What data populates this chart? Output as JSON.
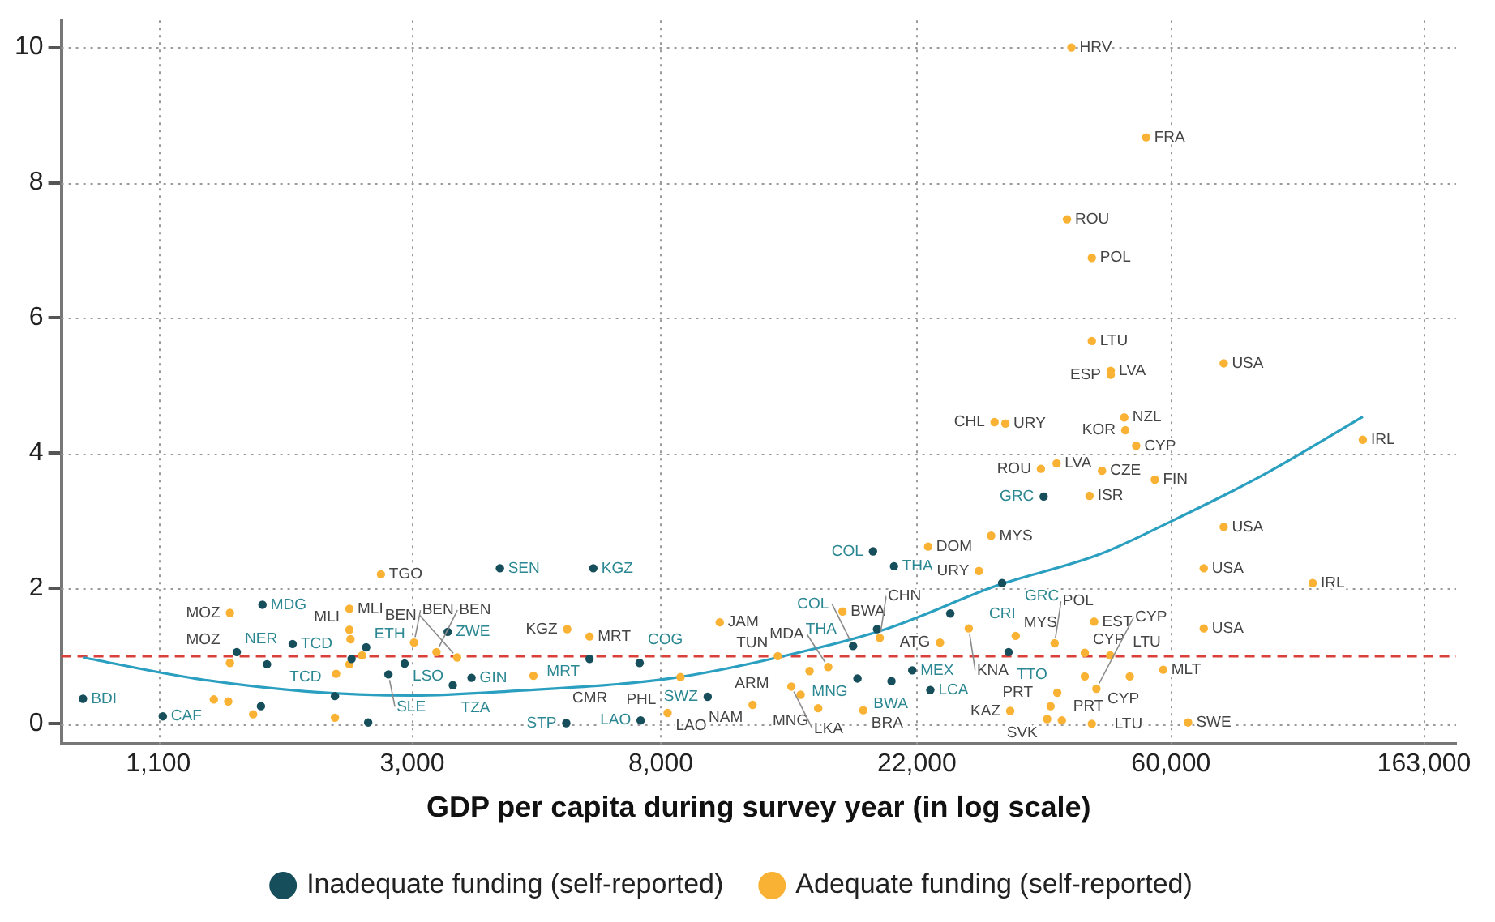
{
  "chart_data": {
    "type": "scatter",
    "xlabel": "GDP per capita during survey year (in log scale)",
    "log": "x",
    "grid": true,
    "legend": "bottom",
    "marker": "circle",
    "xlim": [
      750,
      185000
    ],
    "xticks": [
      {
        "value": 1100,
        "label": "1,100"
      },
      {
        "value": 3000,
        "label": "3,000"
      },
      {
        "value": 8000,
        "label": "8,000"
      },
      {
        "value": 22000,
        "label": "22,000"
      },
      {
        "value": 60000,
        "label": "60,000"
      },
      {
        "value": 163000,
        "label": "163,000"
      }
    ],
    "ylim": [
      -0.3,
      10.4
    ],
    "yticks": [
      0,
      2,
      4,
      6,
      8,
      10
    ],
    "series": [
      {
        "name": "Inadequate funding (self-reported)",
        "color": "#164f5b",
        "x": [
          4240,
          6130,
          18500,
          20100,
          25100,
          18800,
          17100,
          21600,
          23200,
          17400,
          19900,
          7360,
          6040,
          9630,
          7390,
          5510,
          36300,
          30800,
          31600,
          817,
          1120,
          1660,
          1500,
          1870,
          1690,
          3450,
          2500,
          2910,
          2730,
          3790,
          3520,
          2210,
          1650,
          2520,
          2360
        ],
        "values": [
          2.3,
          2.3,
          2.55,
          2.33,
          1.63,
          1.4,
          1.15,
          0.79,
          0.5,
          0.67,
          0.63,
          0.9,
          0.96,
          0.4,
          0.05,
          0.01,
          3.36,
          2.08,
          1.06,
          0.37,
          0.11,
          1.76,
          1.06,
          1.18,
          0.88,
          1.36,
          1.13,
          0.89,
          0.73,
          0.68,
          0.57,
          0.41,
          0.26,
          0.02,
          0.96
        ]
      },
      {
        "name": "Adequate funding (self-reported)",
        "color": "#f9b233",
        "x": [
          40500,
          54400,
          39800,
          43900,
          43900,
          47300,
          47300,
          73900,
          29900,
          31200,
          49900,
          50100,
          52300,
          128000,
          38200,
          35900,
          45700,
          56300,
          43500,
          73900,
          29500,
          23000,
          68300,
          105000,
          68300,
          44300,
          32500,
          37900,
          42700,
          47200,
          58200,
          51000,
          42700,
          44700,
          38300,
          37300,
          31800,
          36800,
          39000,
          43900,
          64200,
          16400,
          10100,
          5530,
          6040,
          19000,
          24100,
          27000,
          12700,
          14400,
          15500,
          13400,
          13900,
          14900,
          17800,
          11500,
          4840,
          8650,
          8220,
          28100,
          2650,
          1460,
          2340,
          2340,
          2350,
          3020,
          3300,
          3580,
          1460,
          1370,
          1450,
          1600,
          2210,
          2220,
          2340,
          2460
        ],
        "values": [
          10.0,
          8.67,
          7.46,
          6.89,
          5.66,
          5.22,
          5.16,
          5.33,
          4.46,
          4.44,
          4.53,
          4.34,
          4.11,
          4.2,
          3.85,
          3.77,
          3.74,
          3.61,
          3.37,
          2.91,
          2.78,
          2.62,
          2.3,
          2.08,
          1.41,
          1.51,
          1.3,
          1.19,
          1.05,
          1.01,
          0.8,
          0.7,
          0.7,
          0.52,
          0.46,
          0.26,
          0.19,
          0.07,
          0.05,
          0.0,
          0.02,
          1.66,
          1.5,
          1.4,
          1.29,
          1.27,
          1.2,
          1.41,
          1.0,
          0.78,
          0.84,
          0.55,
          0.43,
          0.23,
          0.2,
          0.28,
          0.71,
          0.69,
          0.16,
          2.26,
          2.21,
          1.64,
          1.7,
          1.39,
          1.25,
          1.2,
          1.06,
          0.98,
          0.9,
          0.36,
          0.33,
          0.14,
          0.09,
          0.74,
          0.88,
          1.01
        ]
      },
      {
        "type": "line",
        "marker": "none",
        "color": "#2a9fc0",
        "x": [
          817,
          1270,
          1970,
          3010,
          4350,
          8290,
          12700,
          19600,
          30100,
          45400,
          60600,
          86400,
          128000
        ],
        "values": [
          0.98,
          0.67,
          0.48,
          0.42,
          0.48,
          0.67,
          0.98,
          1.41,
          2.04,
          2.51,
          3.01,
          3.68,
          4.54
        ]
      }
    ],
    "ref_lines": [
      {
        "axis": "y",
        "value": 1,
        "color": "#d9403a",
        "line_style": "dashed"
      }
    ],
    "annotations": [
      {
        "text": "SEN",
        "x": 4240,
        "y": 2.3
      },
      {
        "text": "KGZ",
        "x": 6130,
        "y": 2.3
      },
      {
        "text": "COL",
        "x": 18500,
        "y": 2.55
      },
      {
        "text": "THA",
        "x": 20100,
        "y": 2.33
      },
      {
        "text": "CRI",
        "x": 25100,
        "y": 1.63
      },
      {
        "text": "THA",
        "x": 18800,
        "y": 1.4
      },
      {
        "text": "COL",
        "x": 17100,
        "y": 1.15
      },
      {
        "text": "MEX",
        "x": 21600,
        "y": 0.79
      },
      {
        "text": "LCA",
        "x": 23200,
        "y": 0.5
      },
      {
        "text": "MNG",
        "x": 17400,
        "y": 0.67
      },
      {
        "text": "BWA",
        "x": 19900,
        "y": 0.63
      },
      {
        "text": "COG",
        "x": 7360,
        "y": 0.9
      },
      {
        "text": "MRT",
        "x": 6040,
        "y": 0.96
      },
      {
        "text": "SWZ",
        "x": 9630,
        "y": 0.4
      },
      {
        "text": "LAO",
        "x": 7390,
        "y": 0.05
      },
      {
        "text": "STP",
        "x": 5510,
        "y": 0.01
      },
      {
        "text": "GRC",
        "x": 36300,
        "y": 3.36
      },
      {
        "text": "GRC",
        "x": 30800,
        "y": 2.08
      },
      {
        "text": "TTO",
        "x": 31600,
        "y": 1.06
      },
      {
        "text": "BDI",
        "x": 817,
        "y": 0.37
      },
      {
        "text": "CAF",
        "x": 1120,
        "y": 0.11
      },
      {
        "text": "MDG",
        "x": 1660,
        "y": 1.76
      },
      {
        "text": "NER",
        "x": 1500,
        "y": 1.06
      },
      {
        "text": "TCD",
        "x": 1870,
        "y": 1.18
      },
      {
        "text": "TCD",
        "x": 1690,
        "y": 0.88
      },
      {
        "text": "ZWE",
        "x": 3450,
        "y": 1.36
      },
      {
        "text": "ETH",
        "x": 2500,
        "y": 1.13
      },
      {
        "text": "LSO",
        "x": 2910,
        "y": 0.89
      },
      {
        "text": "SLE",
        "x": 2730,
        "y": 0.73
      },
      {
        "text": "GIN",
        "x": 3790,
        "y": 0.68
      },
      {
        "text": "TZA",
        "x": 3520,
        "y": 0.57
      },
      {
        "text": "HRV",
        "x": 40500,
        "y": 10.0
      },
      {
        "text": "FRA",
        "x": 54400,
        "y": 8.67
      },
      {
        "text": "ROU",
        "x": 39800,
        "y": 7.46
      },
      {
        "text": "POL",
        "x": 43900,
        "y": 6.89
      },
      {
        "text": "LTU",
        "x": 43900,
        "y": 5.66
      },
      {
        "text": "LVA",
        "x": 47300,
        "y": 5.22
      },
      {
        "text": "ESP",
        "x": 47300,
        "y": 5.16
      },
      {
        "text": "USA",
        "x": 73900,
        "y": 5.33
      },
      {
        "text": "CHL",
        "x": 29900,
        "y": 4.46
      },
      {
        "text": "URY",
        "x": 31200,
        "y": 4.44
      },
      {
        "text": "NZL",
        "x": 49900,
        "y": 4.53
      },
      {
        "text": "KOR",
        "x": 50100,
        "y": 4.34
      },
      {
        "text": "CYP",
        "x": 52300,
        "y": 4.11
      },
      {
        "text": "IRL",
        "x": 128000,
        "y": 4.2
      },
      {
        "text": "LVA",
        "x": 38200,
        "y": 3.85
      },
      {
        "text": "ROU",
        "x": 35900,
        "y": 3.77
      },
      {
        "text": "CZE",
        "x": 45700,
        "y": 3.74
      },
      {
        "text": "FIN",
        "x": 56300,
        "y": 3.61
      },
      {
        "text": "ISR",
        "x": 43500,
        "y": 3.37
      },
      {
        "text": "USA",
        "x": 73900,
        "y": 2.91
      },
      {
        "text": "MYS",
        "x": 29500,
        "y": 2.78
      },
      {
        "text": "DOM",
        "x": 23000,
        "y": 2.62
      },
      {
        "text": "USA",
        "x": 68300,
        "y": 2.3
      },
      {
        "text": "IRL",
        "x": 105000,
        "y": 2.08
      },
      {
        "text": "USA",
        "x": 68300,
        "y": 1.41
      },
      {
        "text": "EST",
        "x": 44300,
        "y": 1.51
      },
      {
        "text": "MYS",
        "x": 32500,
        "y": 1.3
      },
      {
        "text": "POL",
        "x": 37900,
        "y": 1.19
      },
      {
        "text": "CYP",
        "x": 42700,
        "y": 1.05
      },
      {
        "text": "LTU",
        "x": 47200,
        "y": 1.01
      },
      {
        "text": "MLT",
        "x": 58200,
        "y": 0.8
      },
      {
        "text": "CYP",
        "x": 42700,
        "y": 0.7
      },
      {
        "text": "CYP",
        "x": 44700,
        "y": 0.52
      },
      {
        "text": "PRT",
        "x": 38300,
        "y": 0.46
      },
      {
        "text": "PRT",
        "x": 37300,
        "y": 0.26
      },
      {
        "text": "KAZ",
        "x": 31800,
        "y": 0.19
      },
      {
        "text": "SVK",
        "x": 39000,
        "y": 0.05
      },
      {
        "text": "LTU",
        "x": 43900,
        "y": 0.0
      },
      {
        "text": "SWE",
        "x": 64200,
        "y": 0.02
      },
      {
        "text": "BWA",
        "x": 16400,
        "y": 1.66
      },
      {
        "text": "JAM",
        "x": 10100,
        "y": 1.5
      },
      {
        "text": "KGZ",
        "x": 5530,
        "y": 1.4
      },
      {
        "text": "MRT",
        "x": 6040,
        "y": 1.29
      },
      {
        "text": "CHN",
        "x": 19000,
        "y": 1.27
      },
      {
        "text": "ATG",
        "x": 24100,
        "y": 1.2
      },
      {
        "text": "KNA",
        "x": 27000,
        "y": 1.41
      },
      {
        "text": "TUN",
        "x": 12700,
        "y": 1.0
      },
      {
        "text": "ARM",
        "x": 14400,
        "y": 0.78
      },
      {
        "text": "MDA",
        "x": 15500,
        "y": 0.84
      },
      {
        "text": "LKA",
        "x": 13400,
        "y": 0.55
      },
      {
        "text": "MNG",
        "x": 14900,
        "y": 0.23
      },
      {
        "text": "BRA",
        "x": 17800,
        "y": 0.2
      },
      {
        "text": "NAM",
        "x": 11500,
        "y": 0.28
      },
      {
        "text": "CMR",
        "x": 4840,
        "y": 0.71
      },
      {
        "text": "PHL",
        "x": 8650,
        "y": 0.69
      },
      {
        "text": "LAO",
        "x": 8220,
        "y": 0.16
      },
      {
        "text": "URY",
        "x": 28100,
        "y": 2.26
      },
      {
        "text": "TGO",
        "x": 2650,
        "y": 2.21
      },
      {
        "text": "MOZ",
        "x": 1460,
        "y": 1.64
      },
      {
        "text": "MLI",
        "x": 2340,
        "y": 1.7
      },
      {
        "text": "MLI",
        "x": 2340,
        "y": 1.39
      },
      {
        "text": "BEN",
        "x": 3020,
        "y": 1.2
      },
      {
        "text": "BEN",
        "x": 3300,
        "y": 1.06
      },
      {
        "text": "BEN",
        "x": 3580,
        "y": 0.98
      },
      {
        "text": "MOZ",
        "x": 1460,
        "y": 0.9
      }
    ]
  }
}
